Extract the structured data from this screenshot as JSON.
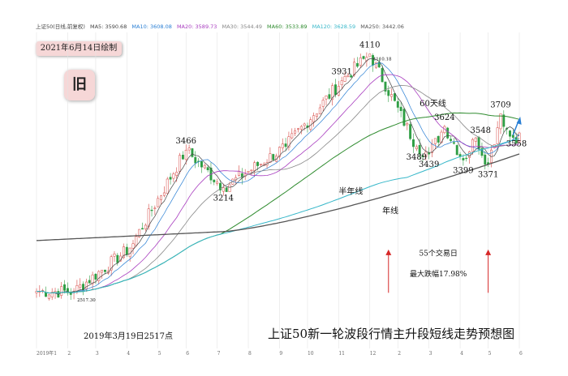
{
  "legend": {
    "index_name": "上证50(日线,前复权)",
    "items": [
      {
        "label": "MA5: 3590.68",
        "color": "#444444"
      },
      {
        "label": "MA10: 3608.08",
        "color": "#2a7fd4"
      },
      {
        "label": "MA20: 3589.73",
        "color": "#a83cbf"
      },
      {
        "label": "MA30: 3544.49",
        "color": "#888888"
      },
      {
        "label": "MA60: 3533.89",
        "color": "#2e8b2e"
      },
      {
        "label": "MA120: 3628.59",
        "color": "#36b7c9"
      },
      {
        "label": "MA250: 3442.06",
        "color": "#555555"
      }
    ]
  },
  "date_badge": "2021年6月14日绘制",
  "tag_badge": "旧",
  "main_title": "上证50新一轮波段行情主升段短线走势预想图",
  "low_caption": "2019年3月19日2517点",
  "chart_data": {
    "type": "line",
    "x_ticks": [
      "2019年1",
      "2",
      "3",
      "4",
      "5",
      "6",
      "7",
      "8",
      "9",
      "10",
      "11",
      "12",
      "2",
      "3",
      "4",
      "5",
      "6"
    ],
    "key_points": [
      {
        "t": 0,
        "v": 2520
      },
      {
        "t": 12,
        "v": 2517.3
      },
      {
        "t": 30,
        "v": 2810
      },
      {
        "t": 48,
        "v": 3466
      },
      {
        "t": 60,
        "v": 3214
      },
      {
        "t": 80,
        "v": 3489
      },
      {
        "t": 98,
        "v": 3931
      },
      {
        "t": 107,
        "v": 4110
      },
      {
        "t": 122,
        "v": 3489
      },
      {
        "t": 126,
        "v": 3439
      },
      {
        "t": 131,
        "v": 3624
      },
      {
        "t": 137,
        "v": 3399
      },
      {
        "t": 141,
        "v": 3548
      },
      {
        "t": 145,
        "v": 3371
      },
      {
        "t": 149,
        "v": 3709
      },
      {
        "t": 152,
        "v": 3558
      }
    ],
    "price_labels": [
      {
        "text": "4110",
        "t": 107,
        "v": 4110
      },
      {
        "text": "4110.18",
        "t": 107,
        "v": 4110
      },
      {
        "text": "3931",
        "t": 98,
        "v": 3931
      },
      {
        "text": "3466",
        "t": 48,
        "v": 3466
      },
      {
        "text": "3214",
        "t": 60,
        "v": 3214
      },
      {
        "text": "3489",
        "t": 122,
        "v": 3489
      },
      {
        "text": "3439",
        "t": 126,
        "v": 3439
      },
      {
        "text": "3624",
        "t": 131,
        "v": 3624
      },
      {
        "text": "3399",
        "t": 137,
        "v": 3399
      },
      {
        "text": "3548",
        "t": 141,
        "v": 3548
      },
      {
        "text": "3371",
        "t": 145,
        "v": 3371
      },
      {
        "text": "3709",
        "t": 149,
        "v": 3709
      },
      {
        "text": "3558",
        "t": 152,
        "v": 3558
      },
      {
        "text": "2517.30",
        "t": 12,
        "v": 2517.3
      }
    ],
    "line_labels": {
      "ma60": "60天线",
      "half_year": "半年线",
      "year": "年线"
    },
    "annotations": {
      "trading_days": "55个交易日",
      "max_drop": "最大跌幅17.98%"
    }
  }
}
